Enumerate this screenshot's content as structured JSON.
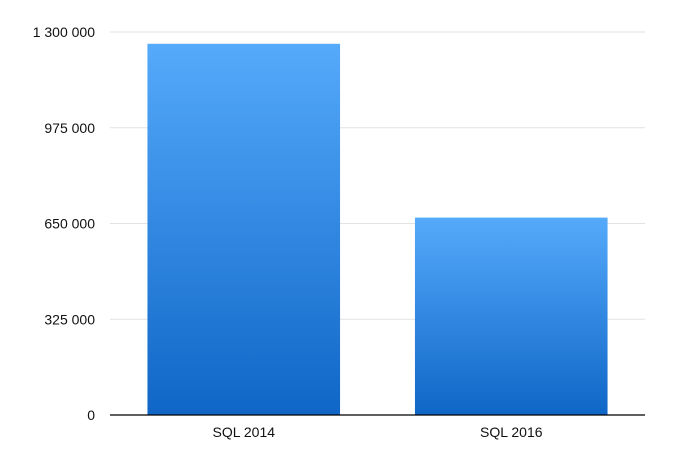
{
  "chart_data": {
    "type": "bar",
    "title": "",
    "xlabel": "",
    "ylabel": "",
    "categories": [
      "SQL 2014",
      "SQL 2016"
    ],
    "values": [
      1260000,
      670000
    ],
    "ylim": [
      0,
      1300000
    ],
    "yticks": [
      0,
      325000,
      650000,
      975000,
      1300000
    ],
    "ytick_labels": [
      "0",
      "325 000",
      "650 000",
      "975 000",
      "1 300 000"
    ],
    "grid": true,
    "legend": "none",
    "colors": {
      "bar_top": "#55aafb",
      "bar_bottom": "#0f66c6",
      "grid": "#e2e2e2",
      "axis": "#000000"
    }
  }
}
